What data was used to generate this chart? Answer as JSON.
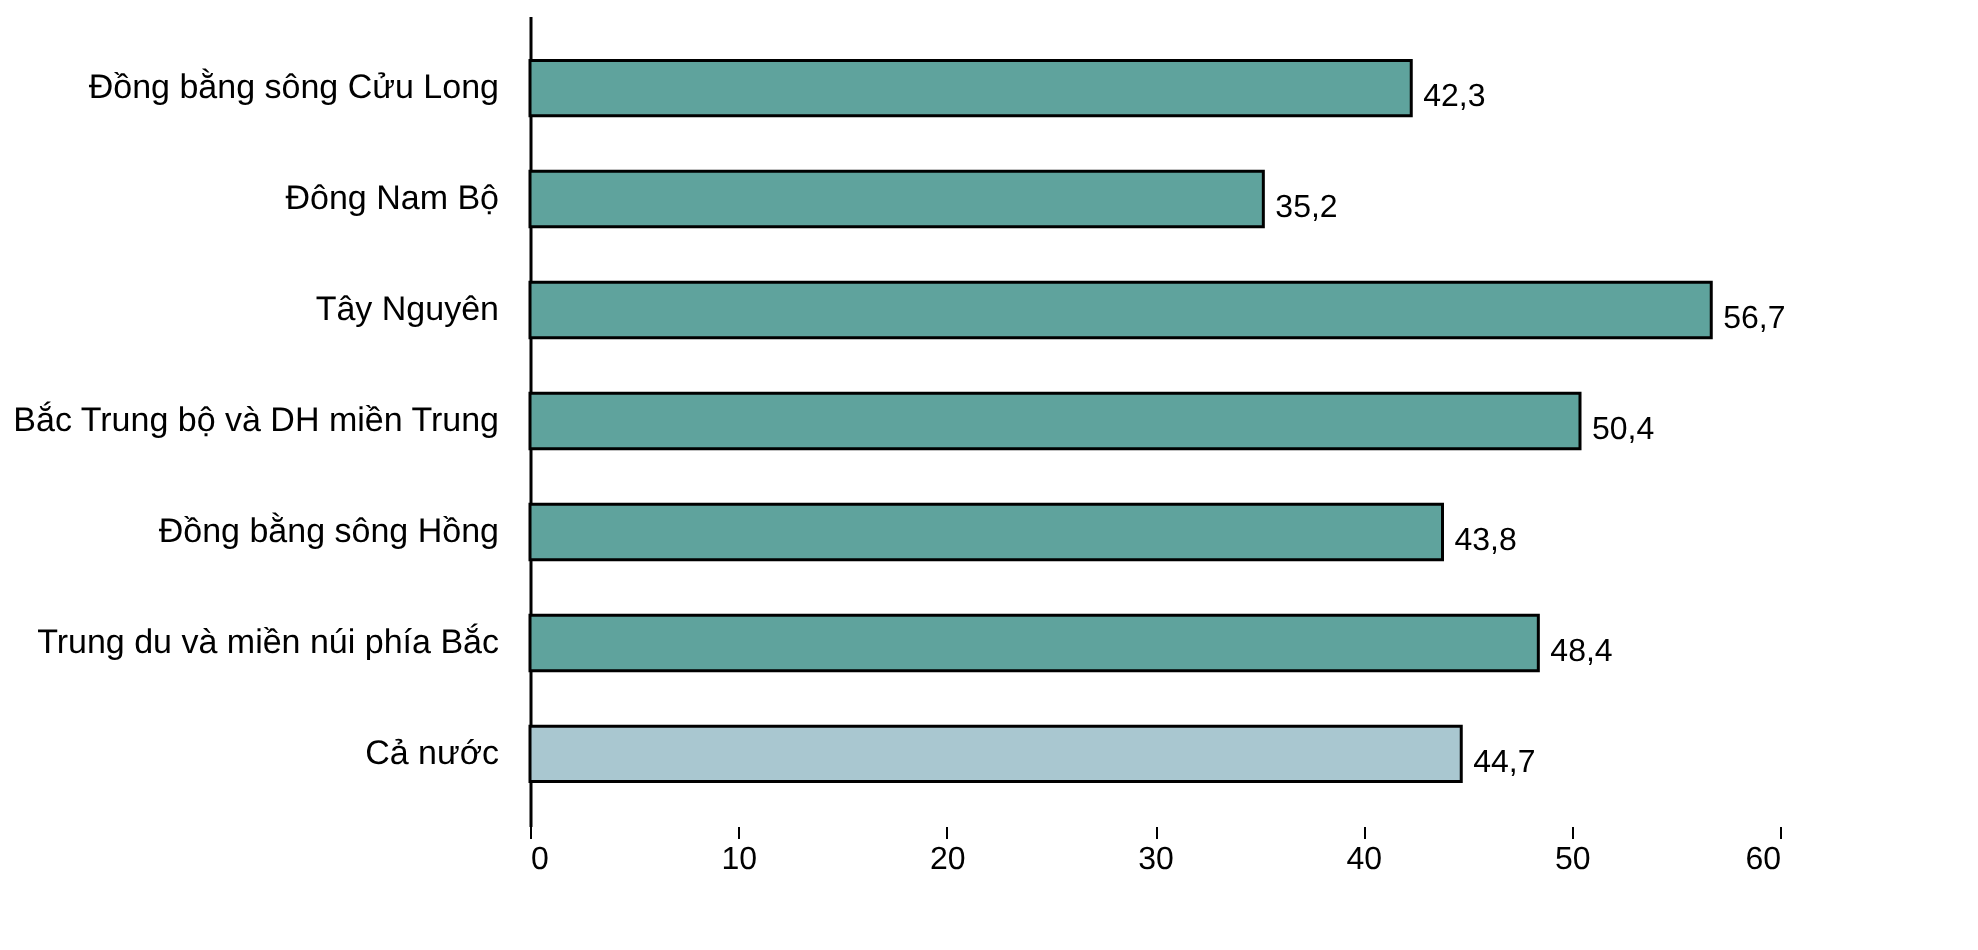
{
  "chart_data": {
    "type": "bar",
    "orientation": "horizontal",
    "categories": [
      "Đồng bằng sông Cửu Long",
      "Đông Nam Bộ",
      "Tây Nguyên",
      "Bắc Trung bộ và DH miền Trung",
      "Đồng bằng sông Hồng",
      "Trung du và miền núi phía Bắc",
      "Cả nước"
    ],
    "values": [
      42.3,
      35.2,
      56.7,
      50.4,
      43.8,
      48.4,
      44.7
    ],
    "colors": [
      "#5fa39d",
      "#5fa39d",
      "#5fa39d",
      "#5fa39d",
      "#5fa39d",
      "#5fa39d",
      "#a9c7d0"
    ],
    "value_labels": [
      "42,3",
      "35,2",
      "56,7",
      "50,4",
      "43,8",
      "48,4",
      "44,7"
    ],
    "xlim": [
      0,
      60
    ],
    "xticks": [
      0,
      10,
      20,
      30,
      40,
      50,
      60
    ],
    "grid": false,
    "legend": false
  }
}
